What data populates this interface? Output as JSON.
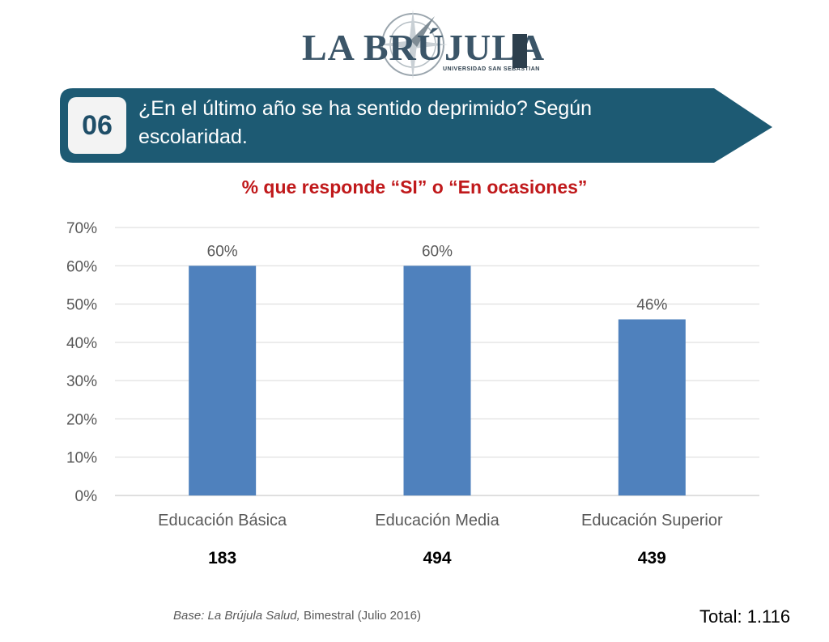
{
  "logo": {
    "text": "LA BRÚJULA",
    "subtext": "UNIVERSIDAD SAN SEBASTIAN"
  },
  "header": {
    "number": "06",
    "question": "¿En el último año se ha sentido deprimido? Según escolaridad.",
    "banner_color": "#1d5a73"
  },
  "chart_data": {
    "type": "bar",
    "title": "% que responde “SI” o “En ocasiones”",
    "categories": [
      "Educación Básica",
      "Educación Media",
      "Educación Superior"
    ],
    "values": [
      60,
      60,
      46
    ],
    "data_labels": [
      "60%",
      "60%",
      "46%"
    ],
    "y_ticks": [
      "0%",
      "10%",
      "20%",
      "30%",
      "40%",
      "50%",
      "60%",
      "70%"
    ],
    "ylim": [
      0,
      70
    ],
    "grid": true,
    "bar_color": "#4f81bd",
    "sample_sizes": [
      "183",
      "494",
      "439"
    ]
  },
  "footer": {
    "base_italic": "Base: La Brújula Salud,",
    "base_rest": " Bimestral (Julio 2016)",
    "total": "Total: 1.116"
  }
}
